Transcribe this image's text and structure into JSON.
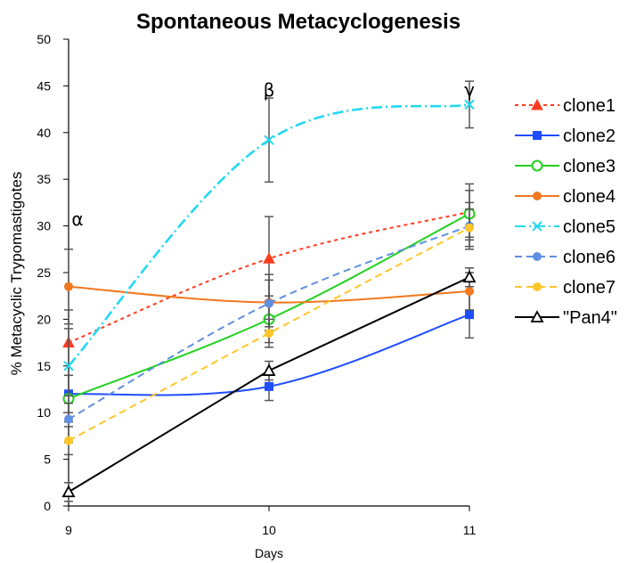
{
  "chart_data": {
    "type": "line",
    "title": "Spontaneous Metacyclogenesis",
    "xlabel": "Days",
    "ylabel": "% Metacyclic Trypomastigotes",
    "x": [
      9,
      10,
      11
    ],
    "x_tick_labels": [
      "9",
      "10",
      "11"
    ],
    "ylim": [
      0,
      50
    ],
    "y_ticks": [
      0,
      5,
      10,
      15,
      20,
      25,
      30,
      35,
      40,
      45,
      50
    ],
    "grid": false,
    "legend_position": "right",
    "annotations": [
      {
        "text": "α",
        "x": 9
      },
      {
        "text": "β",
        "x": 10
      },
      {
        "text": "γ",
        "x": 11
      }
    ],
    "series": [
      {
        "name": "clone1",
        "values": [
          17.5,
          26.5,
          31.5
        ],
        "errors": [
          3.5,
          4.5,
          3.0
        ],
        "color": "#ff3b1f",
        "dash": "dashed-fine",
        "marker": "triangle-filled",
        "smooth": true
      },
      {
        "name": "clone2",
        "values": [
          12.0,
          12.8,
          20.5
        ],
        "errors": [
          2.0,
          1.5,
          2.5
        ],
        "color": "#1f4dff",
        "dash": "solid",
        "marker": "square-filled",
        "smooth": true
      },
      {
        "name": "clone3",
        "values": [
          11.5,
          20.0,
          31.3
        ],
        "errors": [
          2.5,
          2.5,
          2.5
        ],
        "color": "#22d11f",
        "dash": "solid",
        "marker": "circle-open",
        "smooth": true
      },
      {
        "name": "clone4",
        "values": [
          23.5,
          21.8,
          23.0
        ],
        "errors": [
          4.0,
          3.0,
          2.0
        ],
        "color": "#f0781f",
        "dash": "solid",
        "marker": "circle-filled",
        "smooth": true
      },
      {
        "name": "clone5",
        "values": [
          15.0,
          39.2,
          43.0
        ],
        "errors": [
          4.0,
          4.5,
          2.5
        ],
        "color": "#22d8f0",
        "dash": "dash-dot",
        "marker": "x",
        "smooth": true
      },
      {
        "name": "clone6",
        "values": [
          9.3,
          21.7,
          30.0
        ],
        "errors": [
          2.5,
          2.5,
          2.5
        ],
        "color": "#5f8fe0",
        "dash": "dashed",
        "marker": "circle-filled",
        "smooth": true
      },
      {
        "name": "clone7",
        "values": [
          7.0,
          18.5,
          29.8
        ],
        "errors": [
          1.5,
          1.5,
          2.0
        ],
        "color": "#ffc62a",
        "dash": "dashed",
        "marker": "circle-filled",
        "smooth": true
      },
      {
        "name": "\"Pan4\"",
        "values": [
          1.5,
          14.5,
          24.5
        ],
        "errors": [
          1.0,
          1.0,
          1.0
        ],
        "color": "#000000",
        "dash": "solid",
        "marker": "triangle-open",
        "smooth": false
      }
    ]
  }
}
